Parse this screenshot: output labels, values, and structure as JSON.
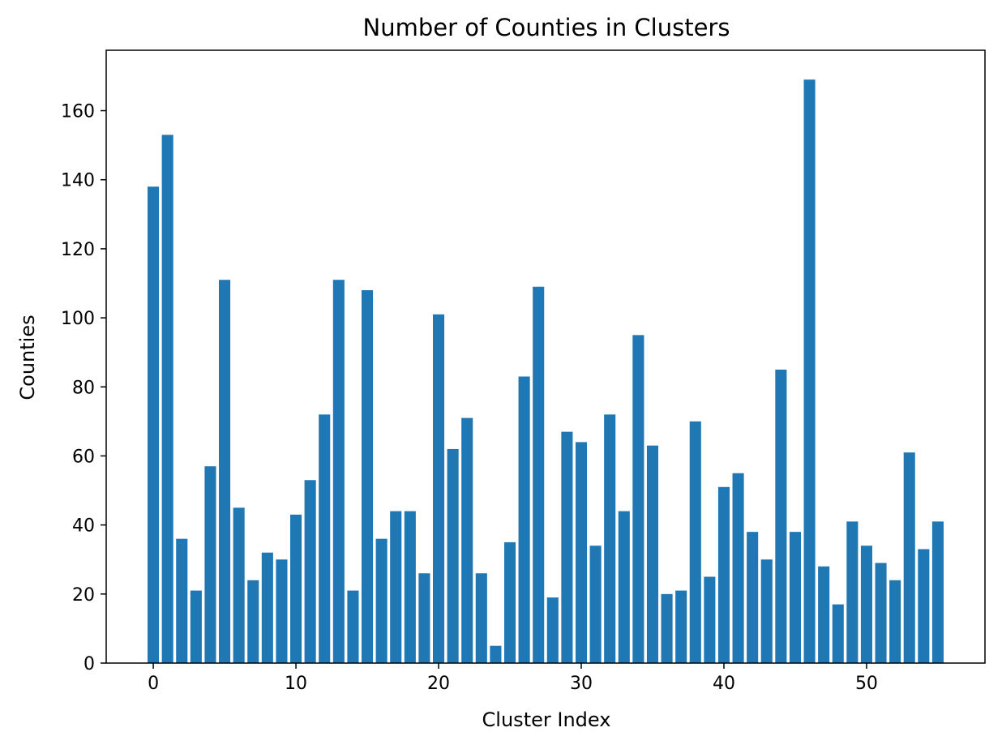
{
  "chart_data": {
    "type": "bar",
    "title": "Number of Counties in Clusters",
    "xlabel": "Cluster Index",
    "ylabel": "Counties",
    "xlim": [
      -3.3,
      58.3
    ],
    "ylim": [
      0,
      177.5
    ],
    "xticks": [
      0,
      10,
      20,
      30,
      40,
      50
    ],
    "yticks": [
      0,
      20,
      40,
      60,
      80,
      100,
      120,
      140,
      160
    ],
    "grid": false,
    "bar_color": "#1f77b4",
    "x": [
      0,
      1,
      2,
      3,
      4,
      5,
      6,
      7,
      8,
      9,
      10,
      11,
      12,
      13,
      14,
      15,
      16,
      17,
      18,
      19,
      20,
      21,
      22,
      23,
      24,
      25,
      26,
      27,
      28,
      29,
      30,
      31,
      32,
      33,
      34,
      35,
      36,
      37,
      38,
      39,
      40,
      41,
      42,
      43,
      44,
      45,
      46,
      47,
      48,
      49,
      50,
      51,
      52,
      53,
      54,
      55
    ],
    "values": [
      138,
      153,
      36,
      21,
      57,
      111,
      45,
      24,
      32,
      30,
      43,
      53,
      72,
      111,
      21,
      108,
      36,
      44,
      44,
      26,
      101,
      62,
      71,
      26,
      5,
      35,
      83,
      109,
      19,
      67,
      64,
      34,
      72,
      44,
      95,
      63,
      20,
      21,
      70,
      25,
      51,
      55,
      38,
      30,
      85,
      38,
      169,
      28,
      17,
      41,
      34,
      29,
      24,
      61,
      33,
      41
    ]
  }
}
